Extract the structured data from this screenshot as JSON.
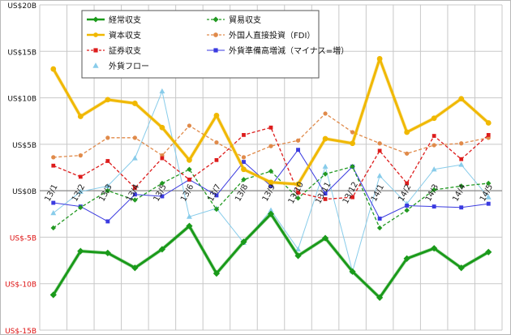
{
  "chart_data": {
    "type": "line",
    "categories": [
      "13/1",
      "13/2",
      "13/3",
      "13/4",
      "13/5",
      "13/6",
      "13/7",
      "13/8",
      "13/9",
      "13/10",
      "13/11",
      "13/12",
      "14/1",
      "14/2",
      "14/3",
      "14/4",
      "14/5"
    ],
    "y_tick_labels": [
      "US$20B",
      "US$15B",
      "US$10B",
      "US$5B",
      "US$0B",
      "US$-5B",
      "US$-10B",
      "US$-15B"
    ],
    "y_tick_values": [
      20,
      15,
      10,
      5,
      0,
      -5,
      -10,
      -15
    ],
    "ylim": [
      -15,
      20
    ],
    "grid": true,
    "legend_position": "top-left",
    "series": [
      {
        "name": "経常収支",
        "color": "#1a9a1a",
        "style": "solid-bold",
        "marker": "diamond",
        "values": [
          -11.2,
          -6.5,
          -6.7,
          -8.3,
          -6.3,
          -3.8,
          -8.9,
          -5.5,
          -2.5,
          -7.0,
          -5.1,
          -8.7,
          -11.5,
          -7.3,
          -6.2,
          -8.3,
          -6.6
        ]
      },
      {
        "name": "資本収支",
        "color": "#f0b800",
        "style": "solid-bold",
        "marker": "circle",
        "values": [
          13.1,
          8.0,
          9.8,
          9.4,
          6.8,
          3.3,
          8.1,
          2.3,
          0.9,
          0.7,
          5.6,
          5.1,
          14.2,
          6.3,
          7.8,
          9.9,
          7.3
        ]
      },
      {
        "name": "証券収支",
        "color": "#dd1c1c",
        "style": "dashed",
        "marker": "square",
        "values": [
          2.7,
          1.5,
          3.2,
          0.3,
          3.5,
          1.2,
          3.3,
          6.0,
          6.8,
          -0.2,
          -0.9,
          -0.7,
          4.3,
          0.8,
          5.9,
          3.4,
          6.0
        ]
      },
      {
        "name": "貿易収支",
        "color": "#229922",
        "style": "dashed",
        "marker": "diamond",
        "values": [
          -4.0,
          -1.8,
          0.0,
          -1.0,
          0.8,
          2.3,
          -2.0,
          1.2,
          2.1,
          -0.8,
          1.8,
          2.6,
          -4.0,
          -2.1,
          0.1,
          0.5,
          0.8
        ]
      },
      {
        "name": "外国人直接投資（FDI）",
        "color": "#e08a4a",
        "style": "dashed",
        "marker": "circle",
        "values": [
          3.6,
          3.8,
          5.7,
          5.7,
          3.8,
          7.0,
          5.2,
          3.6,
          4.8,
          5.4,
          8.3,
          6.3,
          5.1,
          4.0,
          4.9,
          5.1,
          5.7
        ]
      },
      {
        "name": "外貨準備高増減（マイナス=増）",
        "color": "#3a3ae0",
        "style": "solid-thin",
        "marker": "square",
        "values": [
          -1.3,
          -1.7,
          -3.3,
          -0.4,
          -0.6,
          1.2,
          -0.5,
          3.1,
          0.5,
          4.4,
          -0.3,
          2.6,
          -3.0,
          -1.6,
          -1.7,
          -1.8,
          -1.4
        ]
      },
      {
        "name": "外貨フロー",
        "color": "#88ccea",
        "style": "solid-thin",
        "marker": "triangle",
        "values": [
          -2.4,
          -0.1,
          0.5,
          3.5,
          10.7,
          -2.8,
          -1.9,
          -5.6,
          -2.1,
          -6.3,
          2.6,
          -8.7,
          1.6,
          -1.4,
          2.3,
          2.8,
          -0.7
        ]
      }
    ]
  }
}
